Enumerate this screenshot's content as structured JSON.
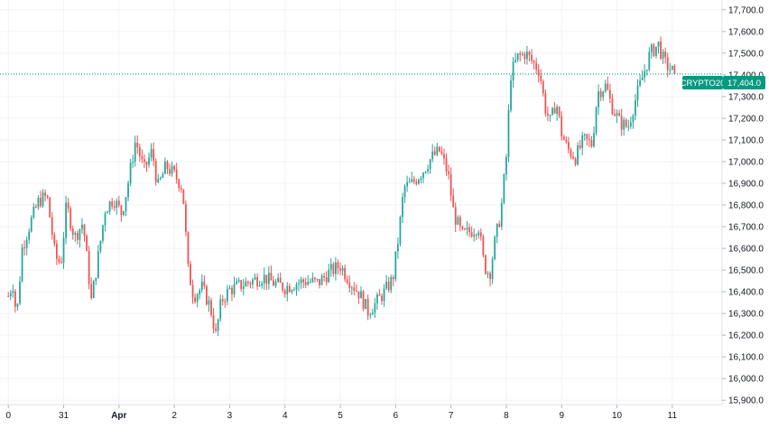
{
  "chart_data": {
    "type": "candlestick",
    "symbol_tag": "CRYPTO20",
    "last_price_label": "17,404.0",
    "last_price": 17404.0,
    "y_ticks": [
      "15,900.0",
      "16,000.0",
      "16,100.0",
      "16,200.0",
      "16,300.0",
      "16,400.0",
      "16,500.0",
      "16,600.0",
      "16,700.0",
      "16,800.0",
      "16,900.0",
      "17,000.0",
      "17,100.0",
      "17,200.0",
      "17,300.0",
      "17,400.0",
      "17,500.0",
      "17,600.0",
      "17,700.0"
    ],
    "y_tick_values": [
      15900,
      16000,
      16100,
      16200,
      16300,
      16400,
      16500,
      16600,
      16700,
      16800,
      16900,
      17000,
      17100,
      17200,
      17300,
      17400,
      17500,
      17600,
      17700
    ],
    "ylim": [
      15880,
      17745
    ],
    "x_labels": [
      "0",
      "31",
      "Apr",
      "2",
      "3",
      "4",
      "5",
      "6",
      "7",
      "8",
      "9",
      "10",
      "11"
    ],
    "x_label_positions": [
      0,
      1,
      2,
      3,
      4,
      5,
      6,
      7,
      8,
      9,
      10,
      11,
      12
    ],
    "x_label_bold": [
      false,
      false,
      true,
      false,
      false,
      false,
      false,
      false,
      false,
      false,
      false,
      false,
      false
    ],
    "x_range": [
      -0.02,
      12.9
    ],
    "grid": true,
    "colors": {
      "up": "#26a69a",
      "down": "#ef5350",
      "grid": "#f0f3fa",
      "tag": "#089981",
      "price_line": "#089981",
      "text": "#131722"
    },
    "candles_per_day": 24,
    "close_path": [
      [
        0,
        16380
      ],
      [
        0.08,
        16440
      ],
      [
        0.15,
        16280
      ],
      [
        0.25,
        16600
      ],
      [
        0.4,
        16720
      ],
      [
        0.55,
        16820
      ],
      [
        0.7,
        16840
      ],
      [
        0.85,
        16560
      ],
      [
        0.95,
        16530
      ],
      [
        1.05,
        16800
      ],
      [
        1.2,
        16650
      ],
      [
        1.35,
        16720
      ],
      [
        1.5,
        16360
      ],
      [
        1.6,
        16520
      ],
      [
        1.75,
        16780
      ],
      [
        1.9,
        16830
      ],
      [
        2.05,
        16760
      ],
      [
        2.15,
        16880
      ],
      [
        2.3,
        17100
      ],
      [
        2.45,
        16960
      ],
      [
        2.6,
        17050
      ],
      [
        2.7,
        16880
      ],
      [
        2.85,
        16980
      ],
      [
        3.0,
        16940
      ],
      [
        3.15,
        16880
      ],
      [
        3.25,
        16500
      ],
      [
        3.35,
        16380
      ],
      [
        3.5,
        16420
      ],
      [
        3.65,
        16330
      ],
      [
        3.75,
        16200
      ],
      [
        3.85,
        16360
      ],
      [
        4.0,
        16410
      ],
      [
        4.2,
        16430
      ],
      [
        4.4,
        16450
      ],
      [
        4.6,
        16470
      ],
      [
        4.8,
        16440
      ],
      [
        5.0,
        16420
      ],
      [
        5.2,
        16440
      ],
      [
        5.4,
        16450
      ],
      [
        5.6,
        16440
      ],
      [
        5.8,
        16490
      ],
      [
        6.0,
        16520
      ],
      [
        6.2,
        16440
      ],
      [
        6.35,
        16390
      ],
      [
        6.5,
        16310
      ],
      [
        6.65,
        16350
      ],
      [
        6.8,
        16400
      ],
      [
        6.95,
        16460
      ],
      [
        7.05,
        16650
      ],
      [
        7.15,
        16880
      ],
      [
        7.3,
        16900
      ],
      [
        7.5,
        16960
      ],
      [
        7.65,
        17020
      ],
      [
        7.8,
        17050
      ],
      [
        7.95,
        16940
      ],
      [
        8.05,
        16760
      ],
      [
        8.2,
        16660
      ],
      [
        8.35,
        16680
      ],
      [
        8.5,
        16700
      ],
      [
        8.6,
        16520
      ],
      [
        8.7,
        16480
      ],
      [
        8.8,
        16640
      ],
      [
        8.9,
        16760
      ],
      [
        9.0,
        17020
      ],
      [
        9.08,
        17400
      ],
      [
        9.2,
        17480
      ],
      [
        9.35,
        17500
      ],
      [
        9.5,
        17450
      ],
      [
        9.6,
        17420
      ],
      [
        9.7,
        17250
      ],
      [
        9.8,
        17180
      ],
      [
        9.9,
        17280
      ],
      [
        10.0,
        17130
      ],
      [
        10.1,
        17060
      ],
      [
        10.25,
        17020
      ],
      [
        10.4,
        17100
      ],
      [
        10.55,
        17080
      ],
      [
        10.65,
        17320
      ],
      [
        10.8,
        17350
      ],
      [
        10.9,
        17260
      ],
      [
        11.05,
        17180
      ],
      [
        11.2,
        17160
      ],
      [
        11.35,
        17300
      ],
      [
        11.45,
        17380
      ],
      [
        11.6,
        17500
      ],
      [
        11.75,
        17540
      ],
      [
        11.85,
        17460
      ],
      [
        11.95,
        17430
      ],
      [
        12.05,
        17404
      ]
    ]
  }
}
